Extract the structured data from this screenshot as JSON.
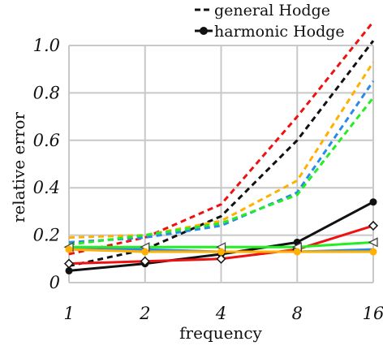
{
  "chart_data": {
    "type": "line",
    "xlabel": "frequency",
    "ylabel": "relative error",
    "x": [
      1,
      2,
      4,
      8,
      16
    ],
    "x_scale": "log2",
    "x_ticks": [
      "1",
      "2",
      "4",
      "8",
      "16"
    ],
    "ylim": [
      0,
      1.0
    ],
    "y_ticks": [
      "0",
      "0.2",
      "0.4",
      "0.6",
      "0.8",
      "1.0"
    ],
    "grid": true,
    "legend": {
      "position": "top-right",
      "entries": [
        {
          "label": "general Hodge",
          "style": "dashed"
        },
        {
          "label": "harmonic Hodge",
          "style": "solid-dot"
        }
      ]
    },
    "series": [
      {
        "group": "general Hodge",
        "color": "#ee1111",
        "style": "dashed",
        "values": [
          0.12,
          0.19,
          0.33,
          0.7,
          1.1
        ]
      },
      {
        "group": "general Hodge",
        "color": "#111111",
        "style": "dashed",
        "values": [
          0.07,
          0.14,
          0.28,
          0.6,
          1.02
        ]
      },
      {
        "group": "general Hodge",
        "color": "#ffb000",
        "style": "dashed",
        "values": [
          0.19,
          0.2,
          0.26,
          0.43,
          0.93
        ]
      },
      {
        "group": "general Hodge",
        "color": "#2a8ae8",
        "style": "dashed",
        "values": [
          0.17,
          0.19,
          0.24,
          0.38,
          0.85
        ]
      },
      {
        "group": "general Hodge",
        "color": "#22ee22",
        "style": "dashed",
        "values": [
          0.16,
          0.2,
          0.25,
          0.37,
          0.78
        ]
      },
      {
        "group": "harmonic Hodge",
        "color": "#111111",
        "style": "solid",
        "marker": "dot",
        "values": [
          0.05,
          0.08,
          0.12,
          0.17,
          0.34
        ]
      },
      {
        "group": "harmonic Hodge",
        "color": "#ee1111",
        "style": "solid",
        "marker": "open-diamond",
        "values": [
          0.08,
          0.09,
          0.1,
          0.14,
          0.24
        ]
      },
      {
        "group": "harmonic Hodge",
        "color": "#22ee22",
        "style": "solid",
        "marker": "open-triangle",
        "values": [
          0.15,
          0.15,
          0.15,
          0.15,
          0.17
        ]
      },
      {
        "group": "harmonic Hodge",
        "color": "#2a8ae8",
        "style": "solid",
        "marker": "none",
        "values": [
          0.14,
          0.14,
          0.13,
          0.13,
          0.14
        ]
      },
      {
        "group": "harmonic Hodge",
        "color": "#ffb000",
        "style": "solid",
        "marker": "dot",
        "values": [
          0.14,
          0.13,
          0.13,
          0.13,
          0.13
        ]
      }
    ]
  }
}
